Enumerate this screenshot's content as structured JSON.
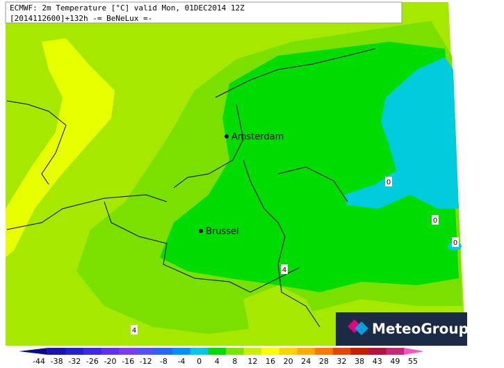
{
  "header": {
    "lines": [
      "ECMWF: 2m Temperature [°C] valid Mon, 01DEC2014 12Z",
      "[2014112600]+132h -= BeNeLux =-"
    ]
  },
  "cities": [
    "Amsterdam",
    "Brussel"
  ],
  "contour_labels": [
    0,
    0,
    0,
    4,
    4
  ],
  "colorbar": {
    "ticks": [
      -44,
      -38,
      -32,
      -26,
      -20,
      -16,
      -12,
      -8,
      -4,
      0,
      4,
      8,
      12,
      16,
      20,
      24,
      28,
      32,
      38,
      43,
      49,
      55
    ],
    "colors": [
      "#0a0a8c",
      "#1414b4",
      "#2020d2",
      "#3c28e6",
      "#5a32f0",
      "#7a3cf0",
      "#5050ff",
      "#2864ff",
      "#0090ff",
      "#00c8e6",
      "#00dc00",
      "#78e600",
      "#c8f000",
      "#ffff00",
      "#ffd200",
      "#ffaa00",
      "#ff7800",
      "#e64600",
      "#c81e00",
      "#b4143c",
      "#c8287a",
      "#ff50c8"
    ]
  },
  "logo": "MeteoGroup"
}
